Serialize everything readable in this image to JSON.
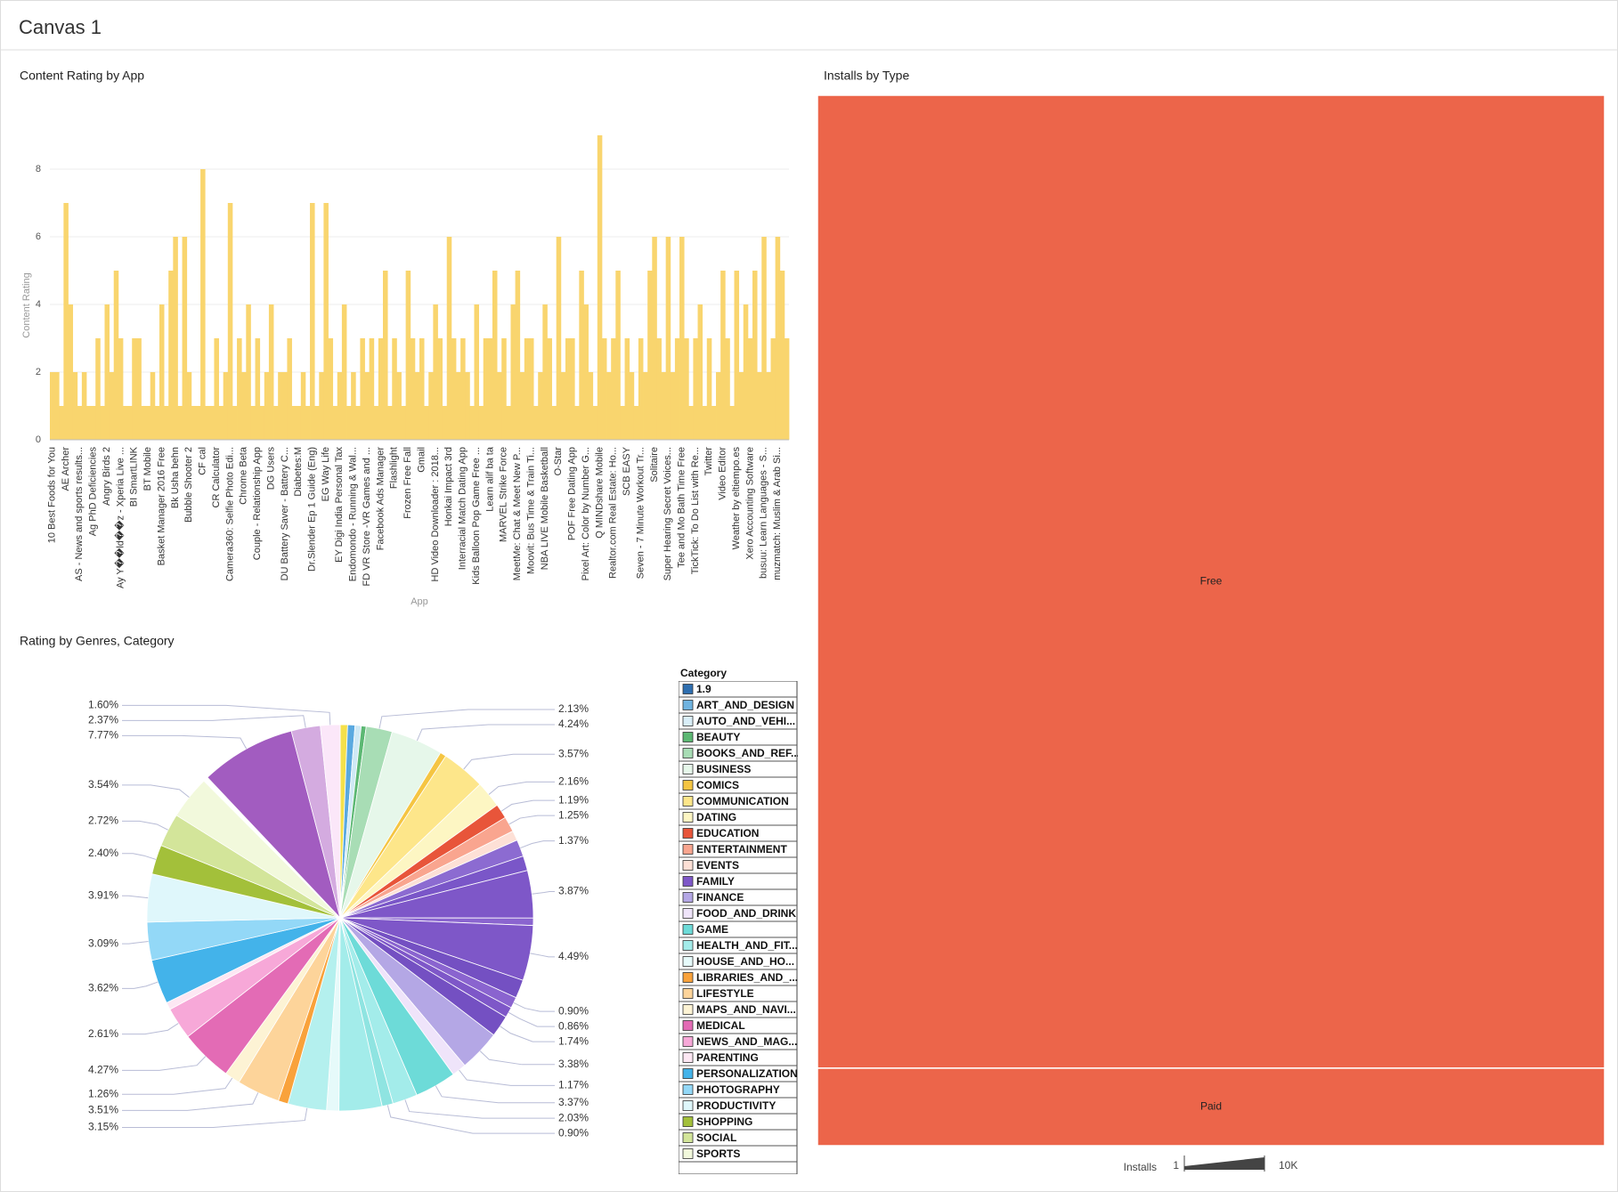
{
  "header": {
    "title": "Canvas 1"
  },
  "chart_data": [
    {
      "type": "bar",
      "title": "Content Rating by App",
      "x_label": "App",
      "y_label": "Content Rating",
      "categories": [
        "10 Best Foods for You",
        null,
        null,
        "AE Archer",
        null,
        null,
        "AS - News and sports results...",
        null,
        null,
        "Ag PhD Deficiencies",
        null,
        null,
        "Angry Birds 2",
        null,
        null,
        "Ay Y��ld��z - Xperia Live ...",
        null,
        null,
        "BI SmartLINK",
        null,
        null,
        "BT Mobile",
        null,
        null,
        "Basket Manager 2016 Free",
        null,
        null,
        "Bk Usha behn",
        null,
        null,
        "Bubble Shooter 2",
        null,
        null,
        "CF cal",
        null,
        null,
        "CR Calculator",
        null,
        null,
        "Camera360: Selfie Photo Edi...",
        null,
        null,
        "Chrome Beta",
        null,
        null,
        "Couple - Relationship App",
        null,
        null,
        "DG Users",
        null,
        null,
        "DU Battery Saver - Battery C...",
        null,
        null,
        "Diabetes:M",
        null,
        null,
        "Dr.Slender Ep 1 Guide (Eng)",
        null,
        null,
        "EG Way Life",
        null,
        null,
        "EY Digi India Personal Tax",
        null,
        null,
        "Endomondo - Running & Wal...",
        null,
        null,
        "FD VR Store -VR Games and ...",
        null,
        null,
        "Facebook Ads Manager",
        null,
        null,
        "Flashlight",
        null,
        null,
        "Frozen Free Fall",
        null,
        null,
        "Gmail",
        null,
        null,
        "HD Video Downloader : 2018...",
        null,
        null,
        "Honkai Impact 3rd",
        null,
        null,
        "Interracial Match Dating App",
        null,
        null,
        "Kids Balloon Pop Game Free ...",
        null,
        null,
        "Learn alif ba ta",
        null,
        null,
        "MARVEL Strike Force",
        null,
        null,
        "MeetMe: Chat & Meet New P...",
        null,
        null,
        "Moovit: Bus Time & Train Ti...",
        null,
        null,
        "NBA LIVE Mobile Basketball",
        null,
        null,
        "O-Star",
        null,
        null,
        "POF Free Dating App",
        null,
        null,
        "Pixel Art: Color by Number G...",
        null,
        null,
        "Q MINDshare Mobile",
        null,
        null,
        "Realtor.com Real Estate: Ho...",
        null,
        null,
        "SCB EASY",
        null,
        null,
        "Seven - 7 Minute Workout Tr...",
        null,
        null,
        "Solitaire",
        null,
        null,
        "Super Hearing Secret Voices...",
        null,
        null,
        "Tee and Mo Bath Time Free",
        null,
        null,
        "TickTick: To Do List with Re...",
        null,
        null,
        "Twitter",
        null,
        null,
        "Video Editor",
        null,
        null,
        "Weather by eltiempo.es",
        null,
        null,
        "Xero Accounting Software",
        null,
        null,
        "busuu: Learn Languages - S...",
        null,
        null,
        "muzmatch: Muslim & Arab Si...",
        null,
        null
      ],
      "values": [
        2,
        2,
        1,
        7,
        4,
        2,
        1,
        2,
        1,
        1,
        3,
        1,
        4,
        2,
        5,
        3,
        1,
        1,
        3,
        3,
        1,
        1,
        2,
        1,
        4,
        1,
        5,
        6,
        1,
        6,
        2,
        1,
        1,
        8,
        1,
        1,
        3,
        1,
        2,
        7,
        1,
        3,
        2,
        4,
        1,
        3,
        1,
        2,
        4,
        1,
        2,
        2,
        3,
        1,
        1,
        2,
        1,
        7,
        1,
        2,
        7,
        3,
        1,
        2,
        4,
        1,
        2,
        1,
        3,
        2,
        3,
        1,
        3,
        5,
        1,
        3,
        2,
        1,
        5,
        3,
        2,
        3,
        1,
        2,
        4,
        3,
        1,
        6,
        3,
        2,
        3,
        2,
        1,
        4,
        1,
        3,
        3,
        5,
        2,
        3,
        1,
        4,
        5,
        2,
        3,
        3,
        1,
        2,
        4,
        3,
        1,
        6,
        2,
        3,
        3,
        1,
        5,
        4,
        2,
        1,
        9,
        3,
        2,
        3,
        5,
        1,
        3,
        2,
        1,
        3,
        2,
        5,
        6,
        3,
        2,
        6,
        2,
        3,
        6,
        3,
        1,
        3,
        4,
        1,
        3,
        1,
        2,
        5,
        3,
        1,
        5,
        2,
        4,
        3,
        5,
        2,
        6,
        2,
        3,
        6,
        5,
        3
      ],
      "color": "#f9d56e",
      "ylim": [
        0,
        9
      ],
      "yticks": [
        0,
        2,
        4,
        6,
        8
      ],
      "grid": true
    },
    {
      "type": "pie",
      "title": "Rating by Genres, Category",
      "values": [
        0.6,
        0.6,
        0.5,
        0.4,
        2.13,
        4.24,
        0.5,
        3.57,
        2.16,
        1.19,
        1.25,
        0.8,
        1.37,
        1.2,
        3.87,
        0.6,
        4.49,
        1.5,
        0.9,
        0.86,
        1.74,
        3.38,
        1.17,
        3.37,
        2.03,
        0.9,
        3.5,
        1.0,
        3.15,
        0.8,
        3.51,
        1.26,
        4.27,
        2.61,
        0.6,
        3.62,
        3.09,
        3.91,
        2.4,
        2.72,
        3.54,
        0.4,
        7.77,
        2.37,
        1.6
      ],
      "value_labels": [
        null,
        null,
        null,
        null,
        "2.13%",
        "4.24%",
        null,
        "3.57%",
        "2.16%",
        "1.19%",
        "1.25%",
        null,
        "1.37%",
        null,
        "3.87%",
        null,
        "4.49%",
        null,
        "0.90%",
        "0.86%",
        "1.74%",
        "3.38%",
        "1.17%",
        "3.37%",
        "2.03%",
        "0.90%",
        null,
        null,
        "3.15%",
        null,
        "3.51%",
        "1.26%",
        "4.27%",
        "2.61%",
        null,
        "3.62%",
        "3.09%",
        "3.91%",
        "2.40%",
        "2.72%",
        "3.54%",
        null,
        "7.77%",
        "2.37%",
        "1.60%"
      ],
      "colors": [
        "#f5e04a",
        "#5aa9e0",
        "#cfe9f5",
        "#5cb873",
        "#a8ddb5",
        "#e6f7ea",
        "#f5c542",
        "#fde68a",
        "#fdf6c3",
        "#e8553a",
        "#f9a58f",
        "#fde0d6",
        "#8c6bd1",
        "#7a56c8",
        "#7e57c8",
        "#8a64cf",
        "#7e57c8",
        "#7450c2",
        "#8a64cf",
        "#7e57c8",
        "#7450c2",
        "#b4a7e5",
        "#efe4fa",
        "#6ddbd8",
        "#a3ecea",
        "#8fe4e1",
        "#a3ecea",
        "#e6fafa",
        "#b4f0ee",
        "#f9a23b",
        "#fdd49a",
        "#fdf3d4",
        "#e36bb5",
        "#f7a8d8",
        "#fde7f3",
        "#43b3ea",
        "#93d8f7",
        "#dff7fb",
        "#a3c03a",
        "#d3e59a",
        "#f2f9dc",
        "#ffffff",
        "#a25cc0",
        "#d4abe0",
        "#fbe7f9"
      ],
      "legend": {
        "title": "Category",
        "items": [
          {
            "name": "1.9",
            "color": "#2f6fb0"
          },
          {
            "name": "ART_AND_DESIGN",
            "color": "#6fb3e0"
          },
          {
            "name": "AUTO_AND_VEHI...",
            "color": "#d9eef8"
          },
          {
            "name": "BEAUTY",
            "color": "#5cb873"
          },
          {
            "name": "BOOKS_AND_REF...",
            "color": "#a8ddb5"
          },
          {
            "name": "BUSINESS",
            "color": "#e6f7ea"
          },
          {
            "name": "COMICS",
            "color": "#f5c542"
          },
          {
            "name": "COMMUNICATION",
            "color": "#fde68a"
          },
          {
            "name": "DATING",
            "color": "#fdf6c3"
          },
          {
            "name": "EDUCATION",
            "color": "#e8553a"
          },
          {
            "name": "ENTERTAINMENT",
            "color": "#f9a58f"
          },
          {
            "name": "EVENTS",
            "color": "#fde0d6"
          },
          {
            "name": "FAMILY",
            "color": "#7e57c8"
          },
          {
            "name": "FINANCE",
            "color": "#b4a7e5"
          },
          {
            "name": "FOOD_AND_DRINK",
            "color": "#efe4fa"
          },
          {
            "name": "GAME",
            "color": "#6ddbd8"
          },
          {
            "name": "HEALTH_AND_FIT...",
            "color": "#a3ecea"
          },
          {
            "name": "HOUSE_AND_HO...",
            "color": "#e6fafa"
          },
          {
            "name": "LIBRARIES_AND_...",
            "color": "#f9a23b"
          },
          {
            "name": "LIFESTYLE",
            "color": "#fdd49a"
          },
          {
            "name": "MAPS_AND_NAVI...",
            "color": "#fdf3d4"
          },
          {
            "name": "MEDICAL",
            "color": "#e36bb5"
          },
          {
            "name": "NEWS_AND_MAG...",
            "color": "#f7a8d8"
          },
          {
            "name": "PARENTING",
            "color": "#fde7f3"
          },
          {
            "name": "PERSONALIZATION",
            "color": "#43b3ea"
          },
          {
            "name": "PHOTOGRAPHY",
            "color": "#93d8f7"
          },
          {
            "name": "PRODUCTIVITY",
            "color": "#dff7fb"
          },
          {
            "name": "SHOPPING",
            "color": "#a3c03a"
          },
          {
            "name": "SOCIAL",
            "color": "#d3e59a"
          },
          {
            "name": "SPORTS",
            "color": "#f2f9dc"
          }
        ]
      }
    },
    {
      "type": "treemap",
      "title": "Installs by Type",
      "categories": [
        "Free",
        "Paid"
      ],
      "values": [
        10039,
        800
      ],
      "color": "#ec654a",
      "size_legend": {
        "title": "Installs",
        "ticks": [
          1,
          {
            "value": 10000,
            "label": "10K"
          }
        ]
      }
    }
  ]
}
